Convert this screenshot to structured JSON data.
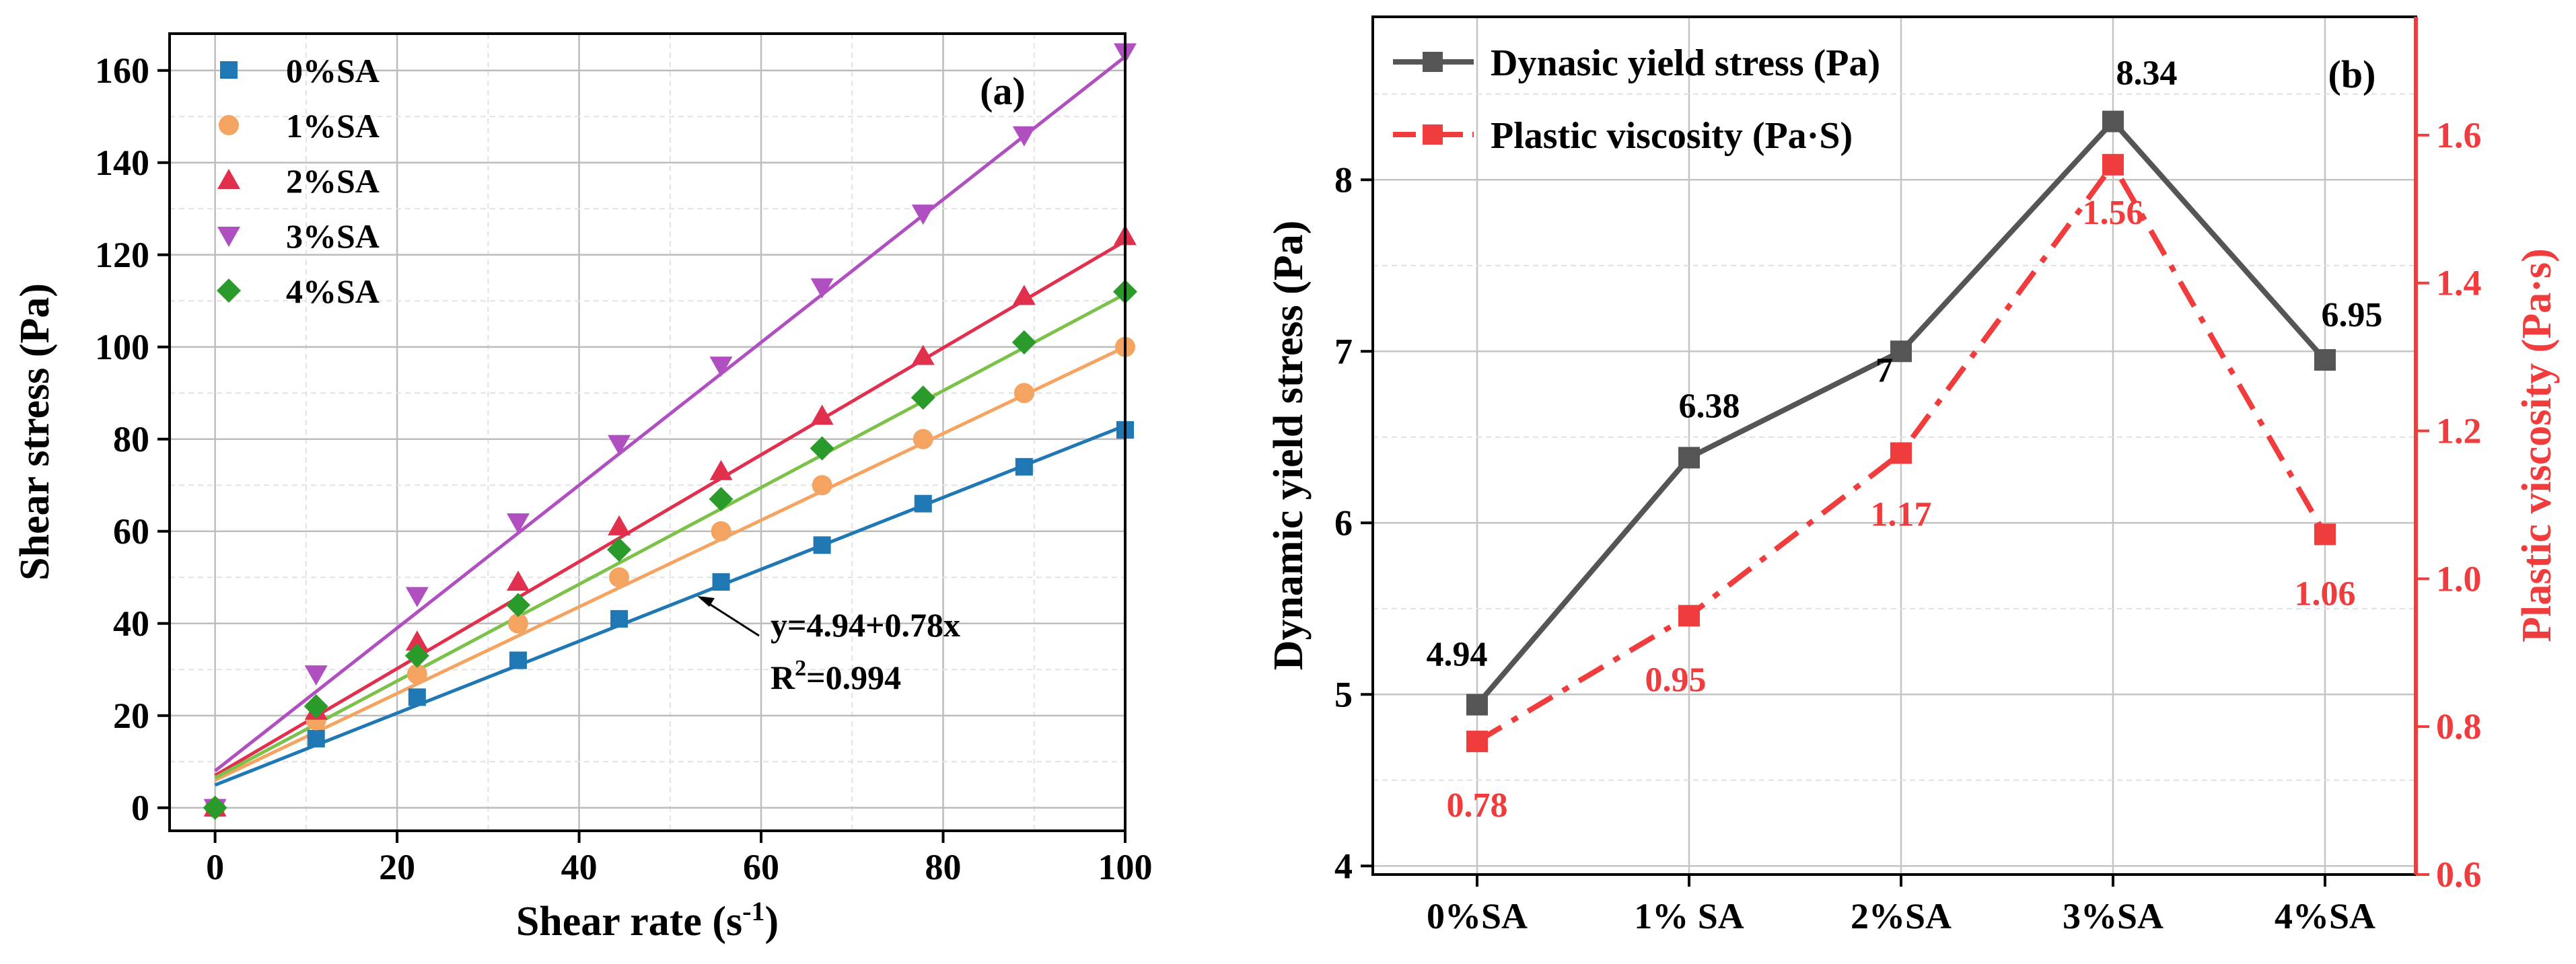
{
  "chart_data": [
    {
      "type": "scatter",
      "panel_label": "(a)",
      "xlabel": "Shear rate (s",
      "xlabel_sup": "-1",
      "xlabel_tail": ")",
      "ylabel": "Shear stress (Pa)",
      "xlim": [
        -5,
        100
      ],
      "ylim": [
        -5,
        168
      ],
      "xticks": [
        "0",
        "20",
        "40",
        "60",
        "80",
        "100"
      ],
      "yticks": [
        "0",
        "20",
        "40",
        "60",
        "80",
        "100",
        "120",
        "140",
        "160"
      ],
      "grid": true,
      "legend_position": "top-left",
      "x": [
        0,
        11.1,
        22.2,
        33.3,
        44.4,
        55.6,
        66.7,
        77.8,
        88.9,
        100
      ],
      "series": [
        {
          "name": "0%SA",
          "marker": "square",
          "color": "#1f77b4",
          "intercept": 4.94,
          "slope": 0.78,
          "values": [
            0,
            15,
            24,
            32,
            41,
            49,
            57,
            66,
            74,
            82
          ]
        },
        {
          "name": "1%SA",
          "marker": "circle",
          "color": "#f4a460",
          "intercept": 6.0,
          "slope": 0.94,
          "values": [
            0,
            19,
            29,
            40,
            50,
            60,
            70,
            80,
            90,
            100
          ]
        },
        {
          "name": "2%SA",
          "marker": "triangle-up",
          "color": "#e0304e",
          "intercept": 7.0,
          "slope": 1.16,
          "values": [
            0,
            21,
            36,
            49,
            61,
            73,
            85,
            98,
            111,
            124
          ]
        },
        {
          "name": "3%SA",
          "marker": "triangle-down",
          "color": "#b04fc0",
          "intercept": 8.0,
          "slope": 1.55,
          "values": [
            0,
            29,
            46,
            62,
            79,
            96,
            113,
            129,
            146,
            164
          ]
        },
        {
          "name": "4%SA",
          "marker": "diamond",
          "color": "#2a9a2a",
          "line_color": "#7cc24a",
          "intercept": 6.5,
          "slope": 1.05,
          "values": [
            0,
            22,
            33,
            44,
            56,
            67,
            78,
            89,
            101,
            112
          ]
        }
      ],
      "annotation": {
        "equation": "y=4.94+0.78x",
        "r2_label": "R",
        "r2_sup": "2",
        "r2_value": "=0.994"
      }
    },
    {
      "type": "line",
      "panel_label": "(b)",
      "categories": [
        "0%SA",
        "1% SA",
        "2%SA",
        "3%SA",
        "4%SA"
      ],
      "grid": true,
      "legend_position": "top-left",
      "left_axis": {
        "label": "Dynamic yield stress (Pa)",
        "ylim": [
          3.95,
          8.95
        ],
        "ticks": [
          "4",
          "5",
          "6",
          "7",
          "8"
        ]
      },
      "right_axis": {
        "label": "Plastic viscosity (Pa·s)",
        "ylim": [
          0.6,
          1.76
        ],
        "ticks": [
          "0.6",
          "0.8",
          "1.0",
          "1.2",
          "1.4",
          "1.6"
        ],
        "color": "#f03c3c"
      },
      "series": [
        {
          "name": "Dynasic yield stress (Pa)",
          "axis": "left",
          "color": "#555555",
          "style": "solid",
          "values": [
            4.94,
            6.38,
            7,
            8.34,
            6.95
          ],
          "labels": [
            "4.94",
            "6.38",
            "7",
            "8.34",
            "6.95"
          ]
        },
        {
          "name": "Plastic viscosity (Pa·S)",
          "axis": "right",
          "color": "#f03c3c",
          "style": "dash-dot",
          "values": [
            0.78,
            0.95,
            1.17,
            1.56,
            1.06
          ],
          "labels": [
            "0.78",
            "0.95",
            "1.17",
            "1.56",
            "1.06"
          ]
        }
      ]
    }
  ]
}
